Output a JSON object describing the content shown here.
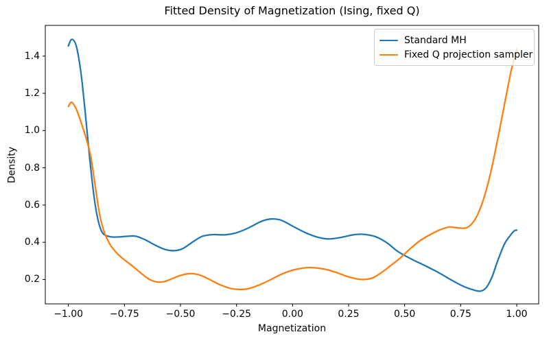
{
  "title": "Fitted Density of Magnetization (Ising, fixed Q)",
  "chart_data": {
    "type": "line",
    "title": "Fitted Density of Magnetization (Ising, fixed Q)",
    "xlabel": "Magnetization",
    "ylabel": "Density",
    "xlim": [
      -1.103,
      1.098
    ],
    "ylim": [
      0.069,
      1.565
    ],
    "grid": false,
    "legend_position": "upper right",
    "x_ticks": [
      -1.0,
      -0.75,
      -0.5,
      -0.25,
      0.0,
      0.25,
      0.5,
      0.75,
      1.0
    ],
    "x_tick_labels": [
      "−1.00",
      "−0.75",
      "−0.50",
      "−0.25",
      "0.00",
      "0.25",
      "0.50",
      "0.75",
      "1.00"
    ],
    "y_ticks": [
      0.2,
      0.4,
      0.6,
      0.8,
      1.0,
      1.2,
      1.4
    ],
    "y_tick_labels": [
      "0.2",
      "0.4",
      "0.6",
      "0.8",
      "1.0",
      "1.2",
      "1.4"
    ],
    "axis_color": "#000000",
    "series": [
      {
        "name": "Standard MH",
        "color": "#1f77b4",
        "points": [
          [
            -1.0,
            1.455
          ],
          [
            -0.985,
            1.49
          ],
          [
            -0.965,
            1.455
          ],
          [
            -0.945,
            1.32
          ],
          [
            -0.925,
            1.1
          ],
          [
            -0.905,
            0.85
          ],
          [
            -0.885,
            0.64
          ],
          [
            -0.868,
            0.52
          ],
          [
            -0.85,
            0.455
          ],
          [
            -0.83,
            0.435
          ],
          [
            -0.8,
            0.428
          ],
          [
            -0.77,
            0.429
          ],
          [
            -0.74,
            0.432
          ],
          [
            -0.7,
            0.433
          ],
          [
            -0.66,
            0.415
          ],
          [
            -0.61,
            0.383
          ],
          [
            -0.57,
            0.362
          ],
          [
            -0.53,
            0.355
          ],
          [
            -0.49,
            0.366
          ],
          [
            -0.44,
            0.406
          ],
          [
            -0.4,
            0.433
          ],
          [
            -0.355,
            0.441
          ],
          [
            -0.3,
            0.44
          ],
          [
            -0.25,
            0.451
          ],
          [
            -0.195,
            0.478
          ],
          [
            -0.14,
            0.512
          ],
          [
            -0.095,
            0.525
          ],
          [
            -0.05,
            0.518
          ],
          [
            0.0,
            0.487
          ],
          [
            0.055,
            0.453
          ],
          [
            0.11,
            0.428
          ],
          [
            0.16,
            0.418
          ],
          [
            0.215,
            0.426
          ],
          [
            0.27,
            0.44
          ],
          [
            0.315,
            0.443
          ],
          [
            0.37,
            0.43
          ],
          [
            0.42,
            0.398
          ],
          [
            0.47,
            0.35
          ],
          [
            0.53,
            0.31
          ],
          [
            0.59,
            0.275
          ],
          [
            0.65,
            0.238
          ],
          [
            0.71,
            0.196
          ],
          [
            0.765,
            0.162
          ],
          [
            0.81,
            0.143
          ],
          [
            0.84,
            0.138
          ],
          [
            0.865,
            0.158
          ],
          [
            0.89,
            0.215
          ],
          [
            0.915,
            0.3
          ],
          [
            0.945,
            0.39
          ],
          [
            0.97,
            0.435
          ],
          [
            0.99,
            0.462
          ],
          [
            1.0,
            0.465
          ]
        ]
      },
      {
        "name": "Fixed Q projection sampler",
        "color": "#ff7f0e",
        "points": [
          [
            -1.0,
            1.13
          ],
          [
            -0.985,
            1.152
          ],
          [
            -0.965,
            1.115
          ],
          [
            -0.945,
            1.05
          ],
          [
            -0.92,
            0.955
          ],
          [
            -0.9,
            0.86
          ],
          [
            -0.88,
            0.7
          ],
          [
            -0.86,
            0.545
          ],
          [
            -0.84,
            0.455
          ],
          [
            -0.815,
            0.39
          ],
          [
            -0.79,
            0.35
          ],
          [
            -0.76,
            0.315
          ],
          [
            -0.72,
            0.278
          ],
          [
            -0.68,
            0.238
          ],
          [
            -0.645,
            0.205
          ],
          [
            -0.61,
            0.188
          ],
          [
            -0.575,
            0.188
          ],
          [
            -0.54,
            0.203
          ],
          [
            -0.5,
            0.222
          ],
          [
            -0.46,
            0.232
          ],
          [
            -0.42,
            0.226
          ],
          [
            -0.38,
            0.206
          ],
          [
            -0.33,
            0.175
          ],
          [
            -0.28,
            0.153
          ],
          [
            -0.24,
            0.147
          ],
          [
            -0.2,
            0.15
          ],
          [
            -0.15,
            0.17
          ],
          [
            -0.1,
            0.198
          ],
          [
            -0.05,
            0.228
          ],
          [
            0.0,
            0.25
          ],
          [
            0.05,
            0.262
          ],
          [
            0.09,
            0.264
          ],
          [
            0.14,
            0.256
          ],
          [
            0.19,
            0.24
          ],
          [
            0.24,
            0.218
          ],
          [
            0.28,
            0.205
          ],
          [
            0.32,
            0.2
          ],
          [
            0.36,
            0.21
          ],
          [
            0.4,
            0.24
          ],
          [
            0.44,
            0.277
          ],
          [
            0.48,
            0.315
          ],
          [
            0.52,
            0.36
          ],
          [
            0.57,
            0.41
          ],
          [
            0.62,
            0.445
          ],
          [
            0.66,
            0.468
          ],
          [
            0.7,
            0.482
          ],
          [
            0.74,
            0.477
          ],
          [
            0.78,
            0.48
          ],
          [
            0.815,
            0.525
          ],
          [
            0.85,
            0.625
          ],
          [
            0.885,
            0.78
          ],
          [
            0.92,
            0.985
          ],
          [
            0.95,
            1.17
          ],
          [
            0.975,
            1.32
          ],
          [
            1.0,
            1.44
          ]
        ]
      }
    ]
  },
  "legend": {
    "items": [
      "Standard MH",
      "Fixed Q projection sampler"
    ]
  }
}
